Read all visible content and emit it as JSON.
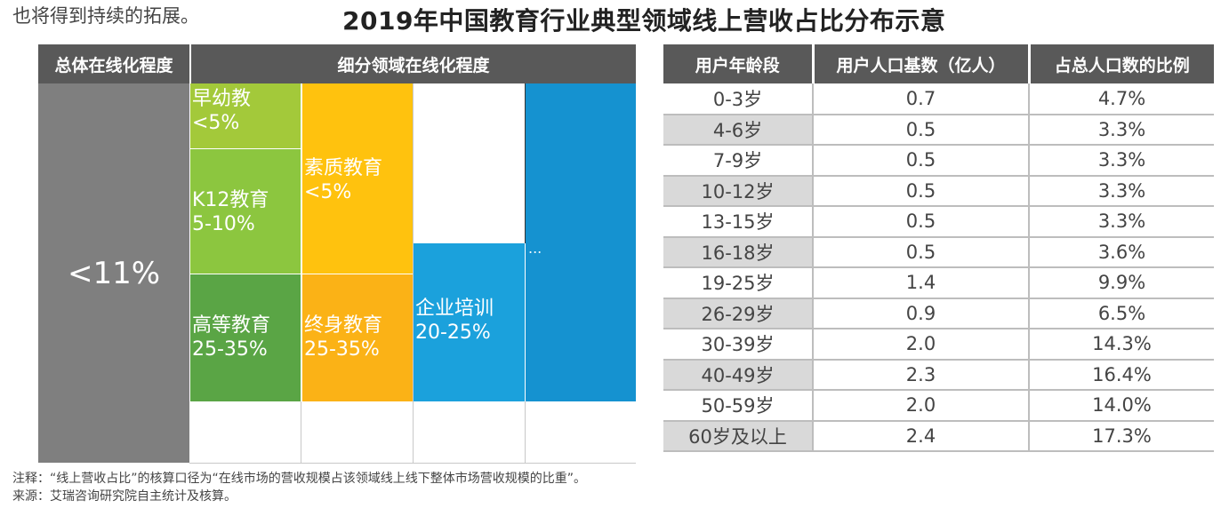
{
  "top_left_text": "也将得到持续的拓展。",
  "title": "2019年中国教育行业典型领域线上营收占比分布示意",
  "colors": {
    "header_bg": "#595959",
    "overall_bg": "#7f7f7f",
    "early": "#a3c93a",
    "k12": "#8cc63f",
    "higher": "#5aa545",
    "quality": "#ffc20e",
    "lifelong": "#fbb216",
    "corporate": "#1ba1dc",
    "other": "#1592d0"
  },
  "chart_data": [
    {
      "type": "table",
      "title": "2019年中国教育行业典型领域线上营收占比分布示意",
      "headers": [
        "总体在线化程度",
        "细分领域在线化程度"
      ],
      "overall": "<11%",
      "segments": [
        {
          "name": "早幼教",
          "value": "<5%"
        },
        {
          "name": "K12教育",
          "value": "5-10%"
        },
        {
          "name": "高等教育",
          "value": "25-35%"
        },
        {
          "name": "素质教育",
          "value": "<5%"
        },
        {
          "name": "终身教育",
          "value": "25-35%"
        },
        {
          "name": "企业培训",
          "value": "20-25%"
        },
        {
          "name": "...",
          "value": ""
        }
      ]
    },
    {
      "type": "table",
      "columns": [
        "用户年龄段",
        "用户人口基数（亿人）",
        "占总人口数的比例"
      ],
      "rows": [
        [
          "0-3岁",
          "0.7",
          "4.7%"
        ],
        [
          "4-6岁",
          "0.5",
          "3.3%"
        ],
        [
          "7-9岁",
          "0.5",
          "3.3%"
        ],
        [
          "10-12岁",
          "0.5",
          "3.3%"
        ],
        [
          "13-15岁",
          "0.5",
          "3.3%"
        ],
        [
          "16-18岁",
          "0.5",
          "3.6%"
        ],
        [
          "19-25岁",
          "1.4",
          "9.9%"
        ],
        [
          "26-29岁",
          "0.9",
          "6.5%"
        ],
        [
          "30-39岁",
          "2.0",
          "14.3%"
        ],
        [
          "40-49岁",
          "2.3",
          "16.4%"
        ],
        [
          "50-59岁",
          "2.0",
          "14.0%"
        ],
        [
          "60岁及以上",
          "2.4",
          "17.3%"
        ]
      ]
    }
  ],
  "note": "注释：“线上营收占比”的核算口径为“在线市场的营收规模占该领域线上线下整体市场营收规模的比重”。",
  "source": "来源：艾瑞咨询研究院自主统计及核算。"
}
